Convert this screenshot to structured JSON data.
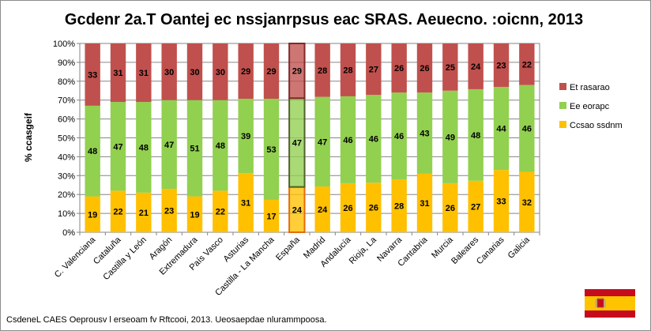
{
  "chart_data": {
    "type": "bar",
    "stacked": true,
    "percent": true,
    "title": "Gcdenr 2a.T Oantej ec nssjanrpsus eac SRAS. Aeuecno. :oicnn, 2013",
    "ylabel": "% ccasgeif",
    "xlabel": "",
    "ylim": [
      0,
      100
    ],
    "yticks": [
      "0%",
      "10%",
      "20%",
      "30%",
      "40%",
      "50%",
      "60%",
      "70%",
      "80%",
      "90%",
      "100%"
    ],
    "grid": true,
    "legend_position": "right",
    "categories": [
      "C. Valenciana",
      "Cataluña",
      "Castilla y León",
      "Aragón",
      "Extremadura",
      "País Vasco",
      "Asturias",
      "Castilla - La Mancha",
      "España",
      "Madrid",
      "Andalucía",
      "Rioja, La",
      "Navarra",
      "Cantabria",
      "Murcia",
      "Baleares",
      "Canarias",
      "Galicia"
    ],
    "highlight_category": "España",
    "series": [
      {
        "name": "Ccsao ssdnm",
        "color": "#ffc000",
        "values": [
          19,
          22,
          21,
          23,
          19,
          22,
          31,
          17,
          24,
          24,
          26,
          26,
          28,
          31,
          26,
          27,
          33,
          32
        ]
      },
      {
        "name": "Ee eorapc",
        "color": "#92d050",
        "values": [
          48,
          47,
          48,
          47,
          51,
          48,
          39,
          53,
          47,
          47,
          46,
          46,
          46,
          43,
          49,
          48,
          44,
          46
        ]
      },
      {
        "name": "Et rasarao",
        "color": "#c0504d",
        "values": [
          33,
          31,
          31,
          30,
          30,
          30,
          29,
          29,
          29,
          28,
          28,
          27,
          26,
          26,
          25,
          24,
          23,
          22
        ]
      }
    ]
  },
  "source": "CsdeneL CAES Oeprousv l erseoam fv Rftcooi, 2013. Ueosaepdae nlurammpoosa.",
  "flag_icon": "spain-flag-icon"
}
